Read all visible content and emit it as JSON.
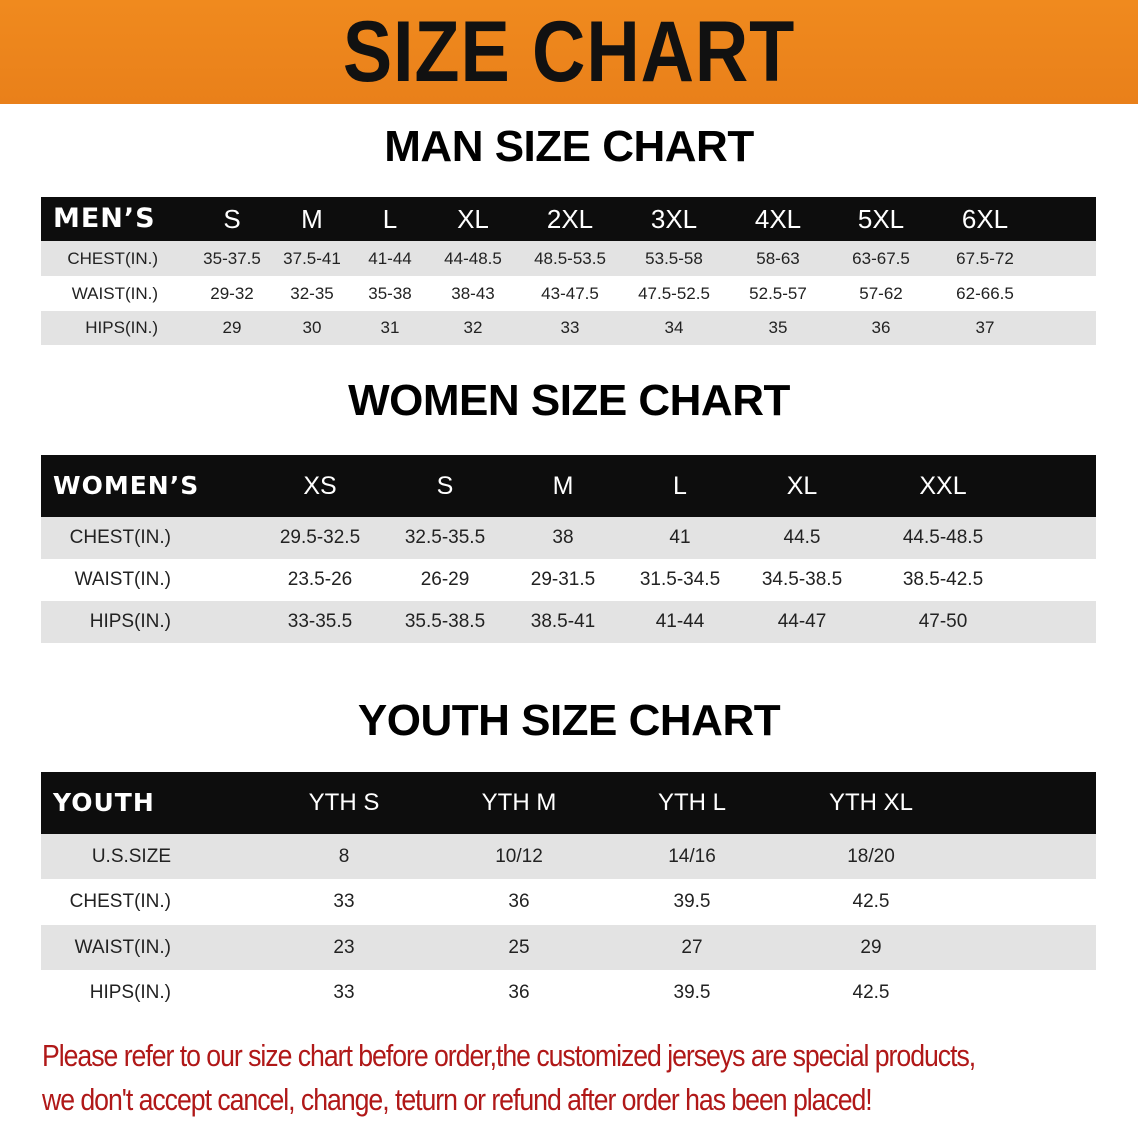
{
  "banner": {
    "title": "SIZE CHART",
    "color": "#ec841c"
  },
  "men": {
    "title": "MAN SIZE CHART",
    "header_label": "MEN’S",
    "sizes": [
      "S",
      "M",
      "L",
      "XL",
      "2XL",
      "3XL",
      "4XL",
      "5XL",
      "6XL"
    ],
    "rows": [
      {
        "label": "CHEST(IN.)",
        "values": [
          "35-37.5",
          "37.5-41",
          "41-44",
          "44-48.5",
          "48.5-53.5",
          "53.5-58",
          "58-63",
          "63-67.5",
          "67.5-72"
        ]
      },
      {
        "label": "WAIST(IN.)",
        "values": [
          "29-32",
          "32-35",
          "35-38",
          "38-43",
          "43-47.5",
          "47.5-52.5",
          "52.5-57",
          "57-62",
          "62-66.5"
        ]
      },
      {
        "label": "HIPS(IN.)",
        "values": [
          "29",
          "30",
          "31",
          "32",
          "33",
          "34",
          "35",
          "36",
          "37"
        ]
      }
    ]
  },
  "women": {
    "title": "WOMEN SIZE CHART",
    "header_label": "WOMEN’S",
    "sizes": [
      "XS",
      "S",
      "M",
      "L",
      "XL",
      "XXL"
    ],
    "rows": [
      {
        "label": "CHEST(IN.)",
        "values": [
          "29.5-32.5",
          "32.5-35.5",
          "38",
          "41",
          "44.5",
          "44.5-48.5"
        ]
      },
      {
        "label": "WAIST(IN.)",
        "values": [
          "23.5-26",
          "26-29",
          "29-31.5",
          "31.5-34.5",
          "34.5-38.5",
          "38.5-42.5"
        ]
      },
      {
        "label": "HIPS(IN.)",
        "values": [
          "33-35.5",
          "35.5-38.5",
          "38.5-41",
          "41-44",
          "44-47",
          "47-50"
        ]
      }
    ]
  },
  "youth": {
    "title": "YOUTH SIZE CHART",
    "header_label": "YOUTH",
    "sizes": [
      "YTH S",
      "YTH M",
      "YTH L",
      "YTH XL"
    ],
    "rows": [
      {
        "label": "U.S.SIZE",
        "values": [
          "8",
          "10/12",
          "14/16",
          "18/20"
        ]
      },
      {
        "label": "CHEST(IN.)",
        "values": [
          "33",
          "36",
          "39.5",
          "42.5"
        ]
      },
      {
        "label": "WAIST(IN.)",
        "values": [
          "23",
          "25",
          "27",
          "29"
        ]
      },
      {
        "label": "HIPS(IN.)",
        "values": [
          "33",
          "36",
          "39.5",
          "42.5"
        ]
      }
    ]
  },
  "note": {
    "line1": "Please refer to our size chart before order,the customized jerseys are special products,",
    "line2": "we don't accept cancel, change, teturn or refund after order has been placed!",
    "color": "#b01818"
  }
}
